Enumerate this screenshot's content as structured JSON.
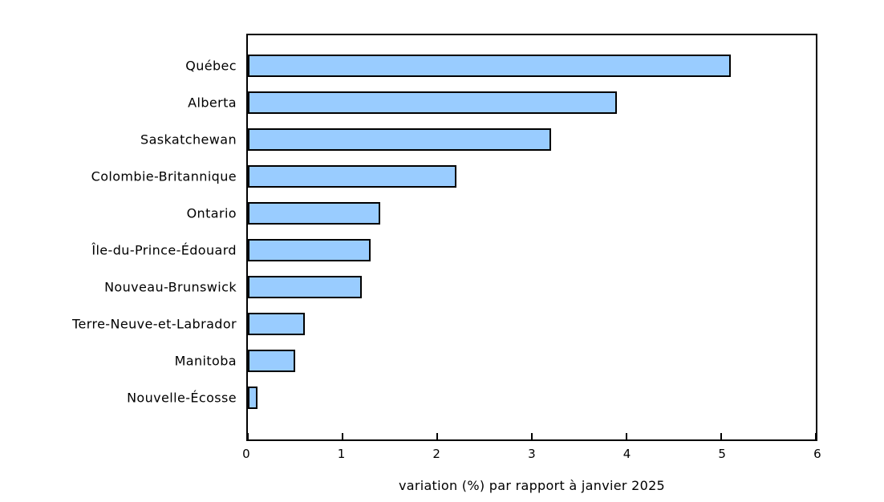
{
  "chart_data": {
    "type": "bar",
    "orientation": "horizontal",
    "title": "",
    "categories": [
      "Québec",
      "Alberta",
      "Saskatchewan",
      "Colombie-Britannique",
      "Ontario",
      "Île-du-Prince-Édouard",
      "Nouveau-Brunswick",
      "Terre-Neuve-et-Labrador",
      "Manitoba",
      "Nouvelle-Écosse"
    ],
    "values": [
      5.1,
      3.9,
      3.2,
      2.2,
      1.4,
      1.3,
      1.2,
      0.6,
      0.5,
      0.1
    ],
    "xlabel": "variation (%) par rapport à janvier 2025",
    "ylabel": "",
    "xlim": [
      0,
      6
    ],
    "xticks": [
      0,
      1,
      2,
      3,
      4,
      5,
      6
    ],
    "grid": false,
    "legend": null,
    "colors": {
      "bar_fill": "#99ccff",
      "bar_border": "#000000",
      "axis": "#000000",
      "background": "#ffffff",
      "text": "#000000"
    }
  }
}
